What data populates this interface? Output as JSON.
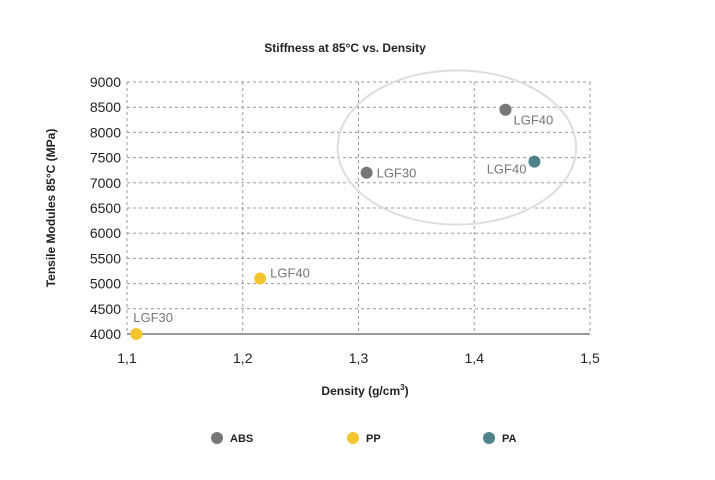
{
  "chart_data": {
    "type": "scatter",
    "title": "Stiffness at 85°C vs. Density",
    "xlabel_main": "Density (g/cm",
    "xlabel_sup": "3",
    "xlabel_end": ")",
    "ylabel": "Tensile Modules 85°C (MPa)",
    "xlim": [
      1.1,
      1.5
    ],
    "ylim": [
      4000,
      9000
    ],
    "x_ticks": [
      {
        "value": 1.1,
        "label": "1,1"
      },
      {
        "value": 1.2,
        "label": "1,2"
      },
      {
        "value": 1.3,
        "label": "1,3"
      },
      {
        "value": 1.4,
        "label": "1,4"
      },
      {
        "value": 1.5,
        "label": "1,5"
      }
    ],
    "y_ticks": [
      {
        "value": 4000,
        "label": "4000"
      },
      {
        "value": 4500,
        "label": "4500"
      },
      {
        "value": 5000,
        "label": "5000"
      },
      {
        "value": 5500,
        "label": "5500"
      },
      {
        "value": 6000,
        "label": "6000"
      },
      {
        "value": 6500,
        "label": "6500"
      },
      {
        "value": 7000,
        "label": "7000"
      },
      {
        "value": 7500,
        "label": "7500"
      },
      {
        "value": 8000,
        "label": "8000"
      },
      {
        "value": 8500,
        "label": "8500"
      },
      {
        "value": 9000,
        "label": "9000"
      }
    ],
    "series": [
      {
        "name": "ABS",
        "color": "#777777",
        "points": [
          {
            "x": 1.307,
            "y": 7200,
            "label": "LGF30",
            "label_pos": "right"
          },
          {
            "x": 1.427,
            "y": 8450,
            "label": "LGF40",
            "label_pos": "below-right"
          }
        ]
      },
      {
        "name": "PP",
        "color": "#F5C531",
        "points": [
          {
            "x": 1.108,
            "y": 4000,
            "label": "LGF30",
            "label_pos": "above"
          },
          {
            "x": 1.215,
            "y": 5100,
            "label": "LGF40",
            "label_pos": "above-right"
          }
        ]
      },
      {
        "name": "PA",
        "color": "#4E8489",
        "points": [
          {
            "x": 1.452,
            "y": 7420,
            "label": "LGF40",
            "label_pos": "below-left"
          }
        ]
      }
    ],
    "annotation": {
      "type": "ellipse",
      "cx": 1.385,
      "cy": 7700,
      "rx": 0.103,
      "ry": 1530,
      "stroke": "#dddddd"
    },
    "legend_placement": "bottom"
  }
}
